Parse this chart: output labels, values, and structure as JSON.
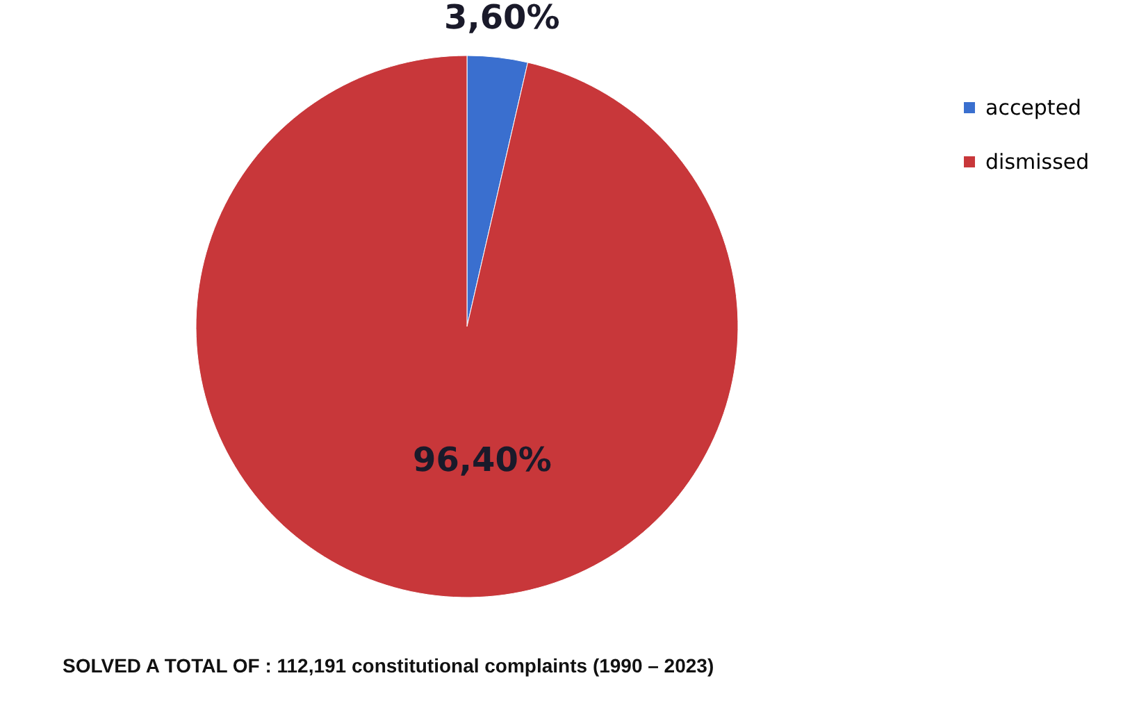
{
  "chart_data": {
    "type": "pie",
    "categories": [
      "accepted",
      "dismissed"
    ],
    "values": [
      3.6,
      96.4
    ],
    "colors": [
      "#3a6fcf",
      "#c8373a"
    ],
    "value_labels": [
      "3,60%",
      "96,40%"
    ],
    "legend": "top right",
    "annotations": [
      "SOLVED A TOTAL  OF : 112,191 constitutional complaints (1990 – 2023)"
    ]
  }
}
